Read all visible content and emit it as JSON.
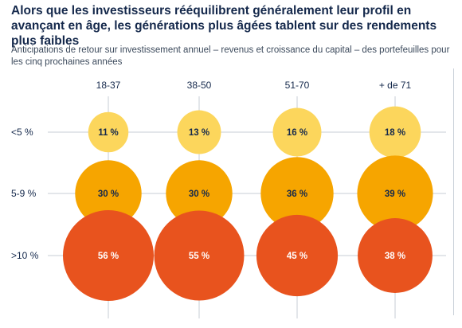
{
  "title": "Alors que les investisseurs rééquilibrent généralement leur profil en avançant en âge, les générations plus âgées tablent sur des rendements plus faibles",
  "subtitle": "Anticipations de retour sur investissement annuel – revenus et croissance du capital – des portefeuilles pour les cinq prochaines années",
  "colors": {
    "low": "#fcd65c",
    "mid": "#f6a500",
    "high": "#e8531e",
    "gridline": "#c7ced6",
    "label": "#14284b"
  },
  "chart_data": {
    "type": "bubble-matrix",
    "title": "Alors que les investisseurs rééquilibrent généralement leur profil en avançant en âge, les générations plus âgées tablent sur des rendements plus faibles",
    "subtitle": "Anticipations de retour sur investissement annuel – revenus et croissance du capital – des portefeuilles pour les cinq prochaines années",
    "columns": [
      "18-37",
      "38-50",
      "51-70",
      "+ de 71"
    ],
    "rows": [
      "<5 %",
      "5-9 %",
      ">10 %"
    ],
    "series": [
      {
        "row": "<5 %",
        "values": [
          11,
          13,
          16,
          18
        ],
        "labels": [
          "11 %",
          "13 %",
          "16 %",
          "18 %"
        ],
        "color": "#fcd65c"
      },
      {
        "row": "5-9 %",
        "values": [
          30,
          30,
          36,
          39
        ],
        "labels": [
          "30 %",
          "30 %",
          "36 %",
          "39 %"
        ],
        "color": "#f6a500"
      },
      {
        "row": ">10 %",
        "values": [
          56,
          55,
          45,
          38
        ],
        "labels": [
          "56 %",
          "55 %",
          "45 %",
          "38 %"
        ],
        "color": "#e8531e"
      }
    ],
    "unit": "%",
    "grid": true
  }
}
